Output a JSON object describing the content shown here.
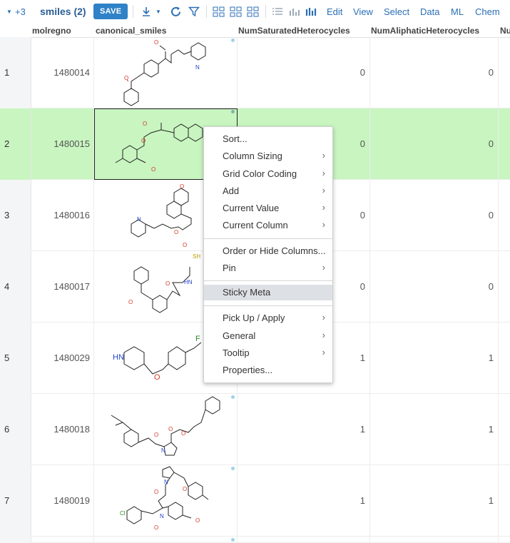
{
  "toolbar": {
    "extra_count": "+3",
    "title": "smiles (2)",
    "save_label": "SAVE",
    "menus": [
      "Edit",
      "View",
      "Select",
      "Data",
      "ML",
      "Chem"
    ]
  },
  "columns": [
    "molregno",
    "canonical_smiles",
    "NumSaturatedHeterocycles",
    "NumAliphaticHeterocycles",
    "Nu"
  ],
  "rows": [
    {
      "n": "1",
      "molregno": "1480014",
      "sat": "0",
      "ali": "0"
    },
    {
      "n": "2",
      "molregno": "1480015",
      "sat": "0",
      "ali": "0"
    },
    {
      "n": "3",
      "molregno": "1480016",
      "sat": "0",
      "ali": "0"
    },
    {
      "n": "4",
      "molregno": "1480017",
      "sat": "0",
      "ali": "0"
    },
    {
      "n": "5",
      "molregno": "1480029",
      "sat": "1",
      "ali": "1"
    },
    {
      "n": "6",
      "molregno": "1480018",
      "sat": "1",
      "ali": "1"
    },
    {
      "n": "7",
      "molregno": "1480019",
      "sat": "1",
      "ali": "1"
    }
  ],
  "atom_labels": {
    "N": "N",
    "O": "O",
    "SH": "SH",
    "HN": "HN",
    "F": "F",
    "Cl": "Cl"
  },
  "context_menu": {
    "items": [
      {
        "label": "Sort...",
        "submenu": false
      },
      {
        "label": "Column Sizing",
        "submenu": true
      },
      {
        "label": "Grid Color Coding",
        "submenu": true
      },
      {
        "label": "Add",
        "submenu": true
      },
      {
        "label": "Current Value",
        "submenu": true
      },
      {
        "label": "Current Column",
        "submenu": true
      },
      {
        "label": "Order or Hide Columns...",
        "submenu": false
      },
      {
        "label": "Pin",
        "submenu": true
      },
      {
        "label": "Sticky Meta",
        "submenu": false,
        "highlighted": true
      },
      {
        "label": "Pick Up / Apply",
        "submenu": true
      },
      {
        "label": "General",
        "submenu": true
      },
      {
        "label": "Tooltip",
        "submenu": true
      },
      {
        "label": "Properties...",
        "submenu": false
      }
    ],
    "arrow_glyph": "›"
  },
  "colors": {
    "selected_row": "#c8f5c0",
    "accent": "#2f82c7"
  }
}
